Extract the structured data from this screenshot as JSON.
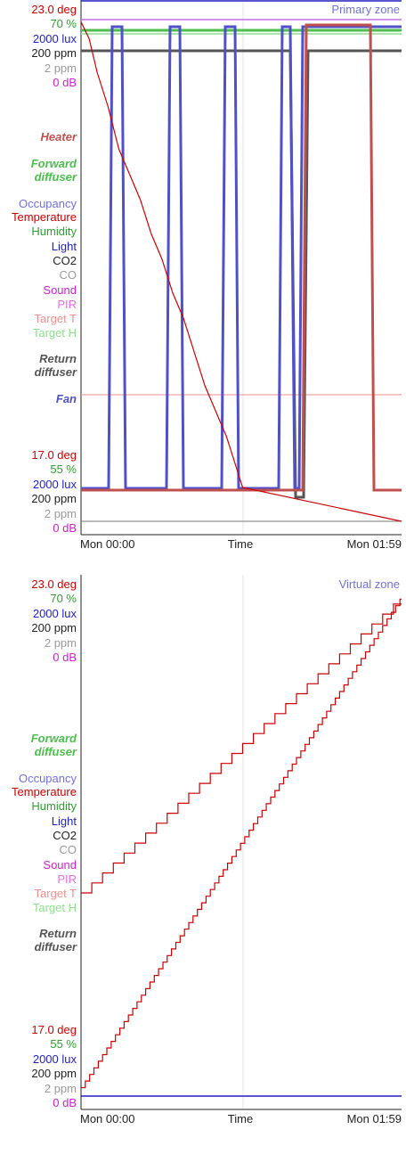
{
  "colors": {
    "temperature": "#cc0000",
    "humidity": "#2e9e2e",
    "light": "#1f1fbf",
    "co2": "#222222",
    "co": "#999999",
    "sound": "#d020d0",
    "pir": "#e070e0",
    "target_t": "#ef8f8f",
    "target_h": "#8fdf8f",
    "occupancy": "#7070dd",
    "heater": "#c0504d",
    "forward_diffuser": "#4cbf4c",
    "return_diffuser": "#555555",
    "fan": "#5050c8"
  },
  "chart_data": [
    {
      "type": "line",
      "zone_label": "Primary zone",
      "xlabel": "Time",
      "x_tick_labels": [
        "Mon 00:00",
        "Time",
        "Mon 01:59"
      ],
      "x_range_minutes": [
        0,
        119
      ],
      "scale_top_labels": [
        "23.0 deg",
        "70 %",
        "2000 lux",
        "200 ppm",
        "2 ppm",
        "0 dB"
      ],
      "scale_bottom_labels": [
        "17.0 deg",
        "55 %",
        "2000 lux",
        "200 ppm",
        "2 ppm",
        "0 dB"
      ],
      "temperature_range_deg": [
        17.0,
        23.0
      ],
      "legend": [
        "Occupancy",
        "Temperature",
        "Humidity",
        "Light",
        "CO2",
        "CO",
        "Sound",
        "PIR",
        "Target T",
        "Target H"
      ],
      "actuator_labels": [
        "Heater",
        "Forward diffuser",
        "Return diffuser",
        "Fan"
      ],
      "series": [
        {
          "key": "temperature",
          "x": [
            0,
            3,
            6,
            10,
            14,
            18,
            22,
            26,
            30,
            34,
            38,
            42,
            46,
            50,
            54,
            58,
            60,
            119
          ],
          "y": [
            22.9,
            22.7,
            22.3,
            21.9,
            21.4,
            21.1,
            20.8,
            20.4,
            20.1,
            19.7,
            19.4,
            19.0,
            18.6,
            18.3,
            18.0,
            17.6,
            17.4,
            17.0
          ]
        },
        {
          "key": "fan",
          "states": [
            "On",
            "Off"
          ],
          "x": [
            0,
            10,
            11,
            15,
            16,
            31,
            32,
            35,
            36,
            57,
            58,
            60,
            61,
            73,
            74,
            76,
            77,
            119
          ],
          "y": [
            "Off",
            "Off",
            "On",
            "On",
            "Off",
            "Off",
            "On",
            "On",
            "Off",
            "Off",
            "On",
            "On",
            "Off",
            "Off",
            "On",
            "On",
            "On",
            "On"
          ]
        },
        {
          "key": "return_diffuser",
          "states": [
            "Open",
            "Closed"
          ],
          "x": [
            0,
            78,
            79,
            81,
            82,
            119
          ],
          "y": [
            "Open",
            "Open",
            "Closed",
            "Closed",
            "Open",
            "Open"
          ]
        },
        {
          "key": "heater",
          "states": [
            "On",
            "Off"
          ],
          "x": [
            0,
            82,
            83,
            109,
            110,
            119
          ],
          "y": [
            "Off",
            "Off",
            "On",
            "On",
            "Off",
            "Off"
          ]
        }
      ]
    },
    {
      "type": "line",
      "zone_label": "Virtual zone",
      "xlabel": "Time",
      "x_tick_labels": [
        "Mon 00:00",
        "Time",
        "Mon 01:59"
      ],
      "x_range_minutes": [
        0,
        119
      ],
      "scale_top_labels": [
        "23.0 deg",
        "70 %",
        "2000 lux",
        "200 ppm",
        "2 ppm",
        "0 dB"
      ],
      "scale_bottom_labels": [
        "17.0 deg",
        "55 %",
        "2000 lux",
        "200 ppm",
        "2 ppm",
        "0 dB"
      ],
      "temperature_range_deg": [
        17.0,
        23.0
      ],
      "legend": [
        "Occupancy",
        "Temperature",
        "Humidity",
        "Light",
        "CO2",
        "CO",
        "Sound",
        "PIR",
        "Target T",
        "Target H"
      ],
      "actuator_labels": [
        "Forward diffuser",
        "Return diffuser"
      ],
      "series": [
        {
          "key": "temperature_a",
          "x": [
            0,
            119
          ],
          "y": [
            19.4,
            22.9
          ],
          "step_minutes": 4
        },
        {
          "key": "temperature_b",
          "x": [
            0,
            119
          ],
          "y": [
            17.1,
            22.9
          ],
          "step_minutes": 1.6
        },
        {
          "key": "light",
          "x": [
            0,
            119
          ],
          "y": [
            17.0,
            17.0
          ]
        }
      ]
    }
  ]
}
